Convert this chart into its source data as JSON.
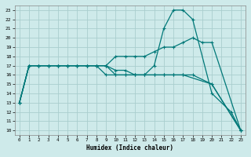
{
  "xlabel": "Humidex (Indice chaleur)",
  "xlim_min": -0.5,
  "xlim_max": 23.5,
  "ylim_min": 9.5,
  "ylim_max": 23.5,
  "yticks": [
    10,
    11,
    12,
    13,
    14,
    15,
    16,
    17,
    18,
    19,
    20,
    21,
    22,
    23
  ],
  "xticks": [
    0,
    1,
    2,
    3,
    4,
    5,
    6,
    7,
    8,
    9,
    10,
    11,
    12,
    13,
    14,
    15,
    16,
    17,
    18,
    19,
    20,
    21,
    22,
    23
  ],
  "bg_color": "#ceeaea",
  "grid_color": "#aacece",
  "line_color": "#007878",
  "lines": [
    {
      "x": [
        0,
        1,
        2,
        3,
        4,
        5,
        6,
        7,
        8,
        9,
        10,
        11,
        12,
        13,
        14,
        15,
        16,
        17,
        18,
        19,
        20,
        23
      ],
      "y": [
        13,
        17,
        17,
        17,
        17,
        17,
        17,
        17,
        17,
        17,
        18,
        18,
        18,
        18,
        18.5,
        19,
        19,
        19.5,
        20,
        19.5,
        19.5,
        10
      ]
    },
    {
      "x": [
        0,
        1,
        2,
        3,
        4,
        5,
        6,
        7,
        8,
        9,
        10,
        11,
        12,
        13,
        14,
        15,
        16,
        17,
        18,
        20,
        23
      ],
      "y": [
        13,
        17,
        17,
        17,
        17,
        17,
        17,
        17,
        17,
        17,
        16.5,
        16.5,
        16,
        16,
        16,
        16,
        16,
        16,
        16,
        15,
        10
      ]
    },
    {
      "x": [
        0,
        1,
        2,
        3,
        4,
        5,
        6,
        7,
        8,
        9,
        10,
        11,
        12,
        13,
        14,
        15,
        16,
        17,
        18,
        20,
        22,
        23
      ],
      "y": [
        13,
        17,
        17,
        17,
        17,
        17,
        17,
        17,
        17,
        17,
        16,
        16,
        16,
        16,
        17,
        21,
        23,
        23,
        22,
        14,
        12,
        10
      ]
    },
    {
      "x": [
        0,
        1,
        2,
        3,
        4,
        5,
        6,
        7,
        8,
        9,
        10,
        11,
        12,
        13,
        14,
        15,
        16,
        17,
        20,
        23
      ],
      "y": [
        13,
        17,
        17,
        17,
        17,
        17,
        17,
        17,
        17,
        16,
        16,
        16,
        16,
        16,
        16,
        16,
        16,
        16,
        15,
        10
      ]
    }
  ]
}
